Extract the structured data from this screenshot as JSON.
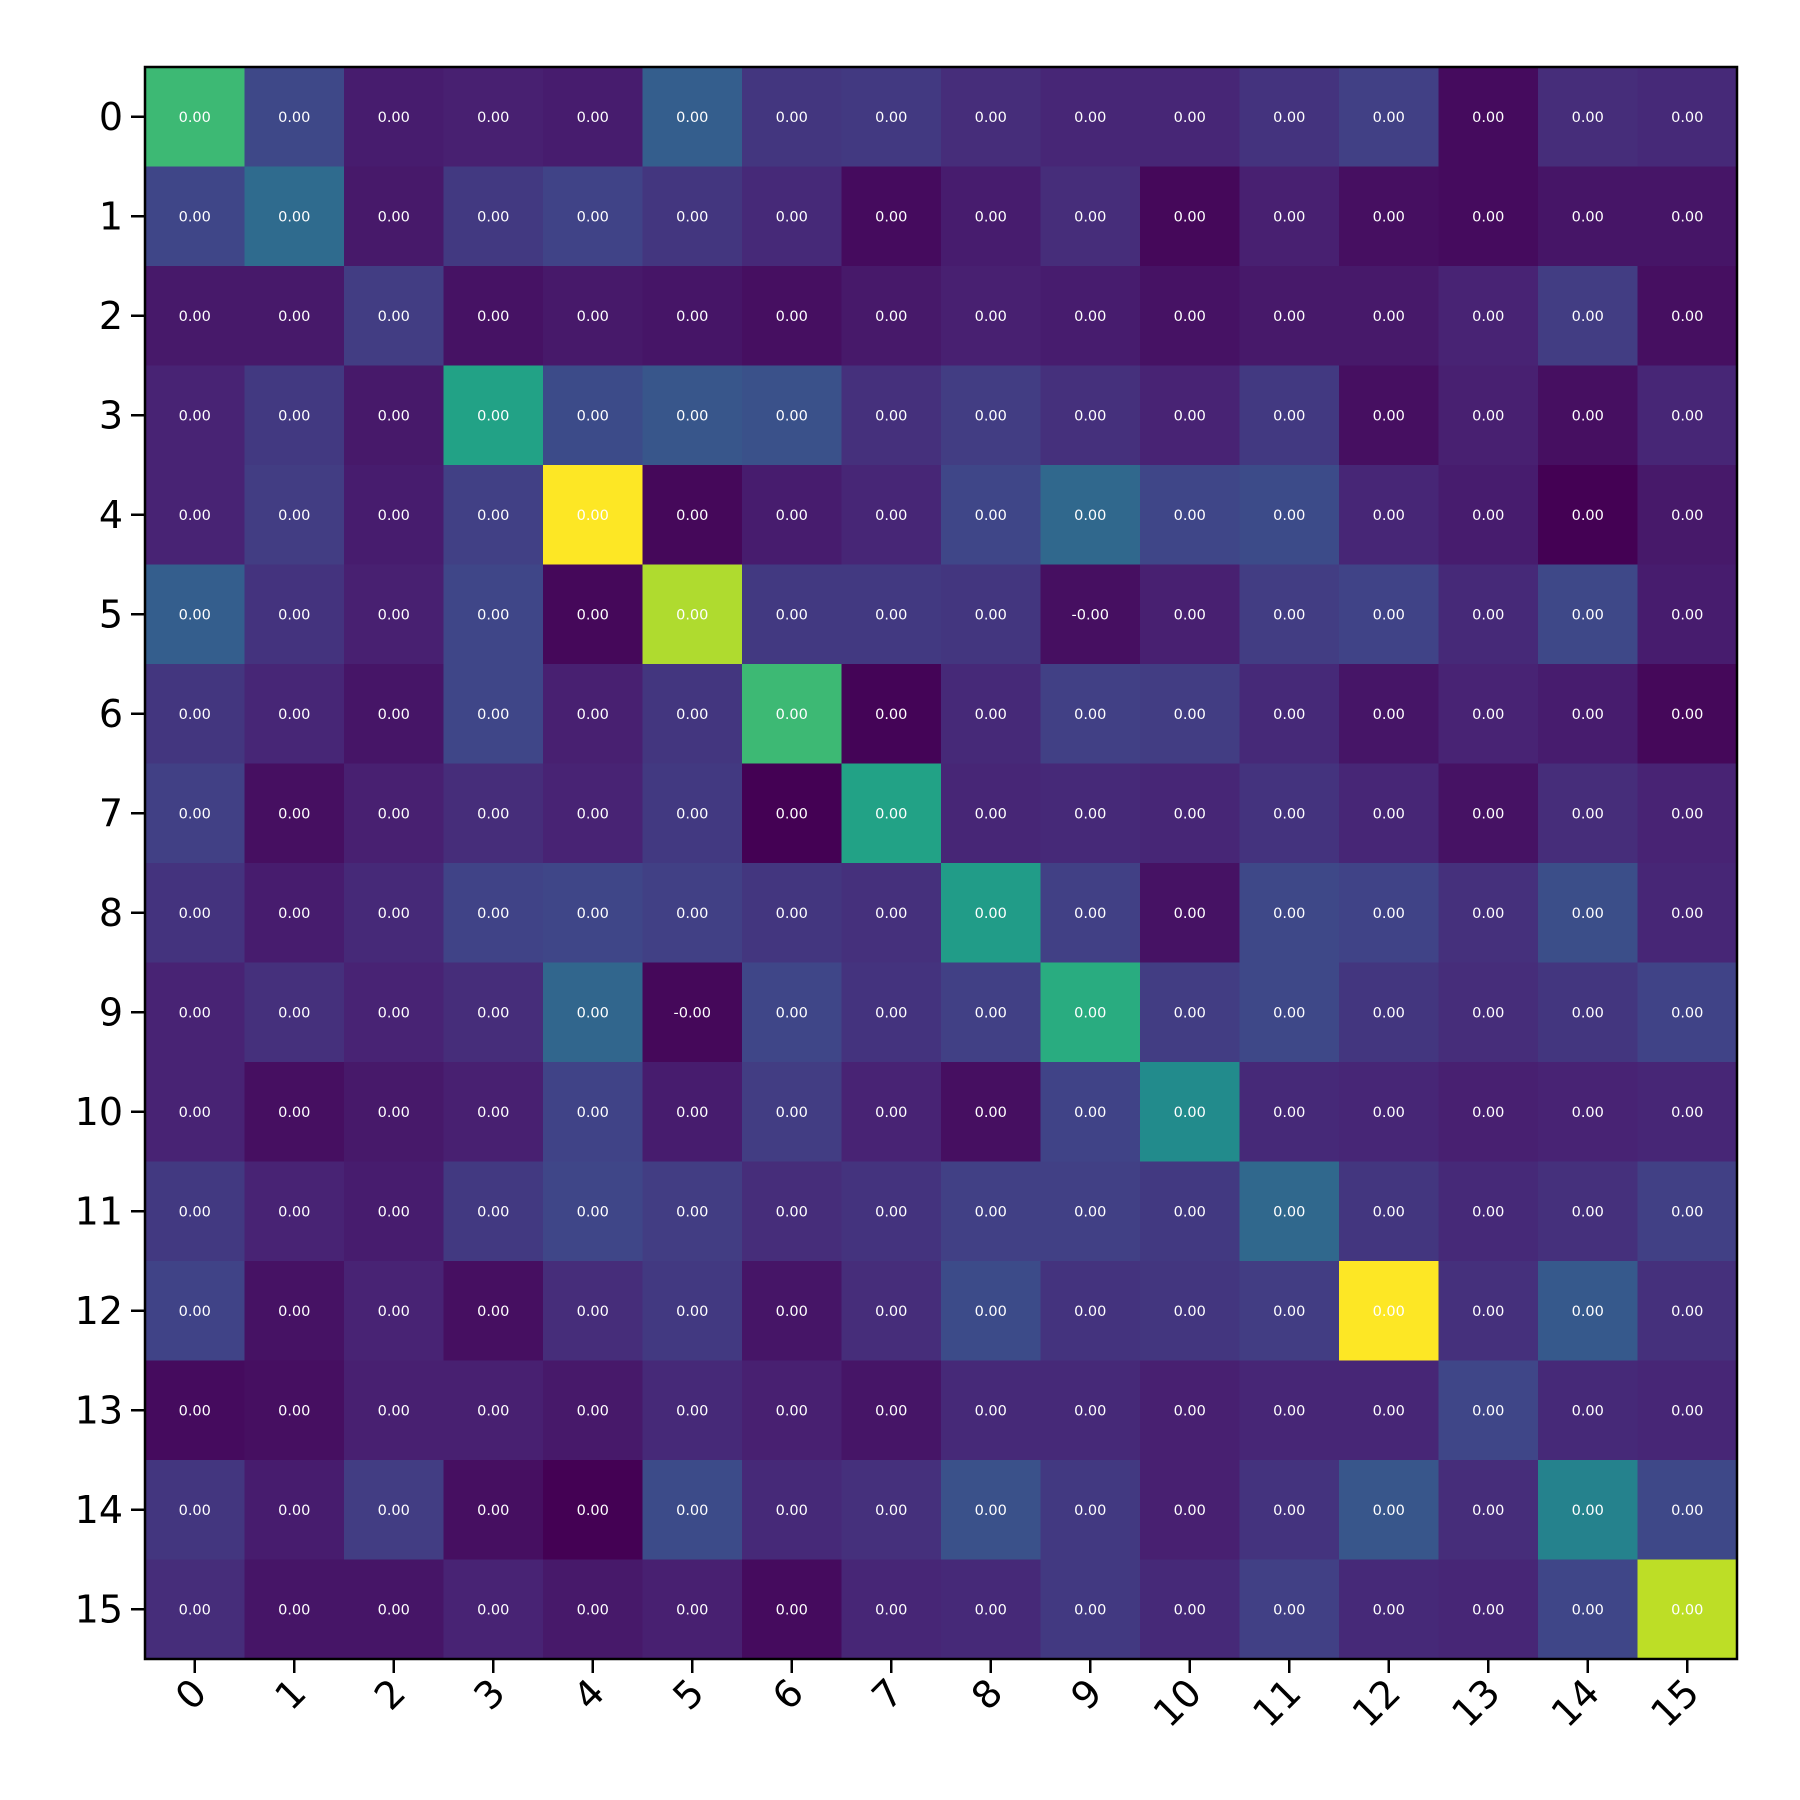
{
  "chart_data": {
    "type": "heatmap",
    "title": "",
    "xlabel": "",
    "ylabel": "",
    "colormap": "viridis",
    "x_categories": [
      "0",
      "1",
      "2",
      "3",
      "4",
      "5",
      "6",
      "7",
      "8",
      "9",
      "10",
      "11",
      "12",
      "13",
      "14",
      "15"
    ],
    "y_categories": [
      "0",
      "1",
      "2",
      "3",
      "4",
      "5",
      "6",
      "7",
      "8",
      "9",
      "10",
      "11",
      "12",
      "13",
      "14",
      "15"
    ],
    "x_tick_rotation_deg": 45,
    "grid": false,
    "legend": "none",
    "color_range": [
      0,
      1
    ],
    "intensity": [
      [
        0.68,
        0.22,
        0.08,
        0.09,
        0.08,
        0.3,
        0.16,
        0.17,
        0.13,
        0.11,
        0.11,
        0.15,
        0.19,
        0.03,
        0.13,
        0.12
      ],
      [
        0.21,
        0.35,
        0.07,
        0.17,
        0.2,
        0.16,
        0.12,
        0.03,
        0.08,
        0.13,
        0.02,
        0.09,
        0.04,
        0.03,
        0.06,
        0.06
      ],
      [
        0.07,
        0.07,
        0.18,
        0.05,
        0.07,
        0.06,
        0.04,
        0.07,
        0.09,
        0.08,
        0.05,
        0.07,
        0.07,
        0.1,
        0.18,
        0.04
      ],
      [
        0.1,
        0.17,
        0.07,
        0.58,
        0.23,
        0.27,
        0.25,
        0.14,
        0.18,
        0.14,
        0.1,
        0.17,
        0.04,
        0.09,
        0.04,
        0.11
      ],
      [
        0.1,
        0.18,
        0.08,
        0.19,
        1.0,
        0.02,
        0.08,
        0.11,
        0.21,
        0.34,
        0.21,
        0.23,
        0.11,
        0.08,
        0.0,
        0.07
      ],
      [
        0.3,
        0.15,
        0.09,
        0.21,
        0.02,
        0.88,
        0.17,
        0.17,
        0.16,
        0.04,
        0.09,
        0.18,
        0.2,
        0.12,
        0.22,
        0.08
      ],
      [
        0.16,
        0.11,
        0.06,
        0.21,
        0.09,
        0.16,
        0.68,
        0.01,
        0.12,
        0.19,
        0.18,
        0.12,
        0.06,
        0.1,
        0.08,
        0.02
      ],
      [
        0.19,
        0.04,
        0.09,
        0.13,
        0.1,
        0.17,
        0.0,
        0.58,
        0.11,
        0.12,
        0.11,
        0.15,
        0.11,
        0.05,
        0.13,
        0.1
      ],
      [
        0.15,
        0.08,
        0.12,
        0.2,
        0.21,
        0.19,
        0.16,
        0.14,
        0.55,
        0.19,
        0.05,
        0.22,
        0.2,
        0.14,
        0.24,
        0.11
      ],
      [
        0.1,
        0.14,
        0.1,
        0.13,
        0.33,
        0.02,
        0.21,
        0.15,
        0.19,
        0.62,
        0.18,
        0.22,
        0.16,
        0.13,
        0.16,
        0.2
      ],
      [
        0.1,
        0.04,
        0.07,
        0.09,
        0.2,
        0.08,
        0.18,
        0.1,
        0.04,
        0.2,
        0.48,
        0.12,
        0.11,
        0.09,
        0.1,
        0.11
      ],
      [
        0.17,
        0.1,
        0.08,
        0.17,
        0.21,
        0.18,
        0.13,
        0.15,
        0.19,
        0.19,
        0.17,
        0.34,
        0.16,
        0.12,
        0.14,
        0.19
      ],
      [
        0.2,
        0.05,
        0.1,
        0.04,
        0.13,
        0.17,
        0.06,
        0.13,
        0.23,
        0.15,
        0.16,
        0.18,
        1.0,
        0.14,
        0.28,
        0.14
      ],
      [
        0.03,
        0.04,
        0.09,
        0.09,
        0.07,
        0.12,
        0.09,
        0.06,
        0.12,
        0.12,
        0.09,
        0.11,
        0.11,
        0.21,
        0.12,
        0.11
      ],
      [
        0.16,
        0.08,
        0.18,
        0.04,
        0.0,
        0.23,
        0.12,
        0.14,
        0.25,
        0.17,
        0.09,
        0.15,
        0.27,
        0.13,
        0.44,
        0.22
      ],
      [
        0.13,
        0.06,
        0.06,
        0.1,
        0.07,
        0.09,
        0.03,
        0.11,
        0.12,
        0.17,
        0.12,
        0.19,
        0.12,
        0.11,
        0.21,
        0.9
      ]
    ],
    "cell_labels": [
      [
        "0.00",
        "0.00",
        "0.00",
        "0.00",
        "0.00",
        "0.00",
        "0.00",
        "0.00",
        "0.00",
        "0.00",
        "0.00",
        "0.00",
        "0.00",
        "0.00",
        "0.00",
        "0.00"
      ],
      [
        "0.00",
        "0.00",
        "0.00",
        "0.00",
        "0.00",
        "0.00",
        "0.00",
        "0.00",
        "0.00",
        "0.00",
        "0.00",
        "0.00",
        "0.00",
        "0.00",
        "0.00",
        "0.00"
      ],
      [
        "0.00",
        "0.00",
        "0.00",
        "0.00",
        "0.00",
        "0.00",
        "0.00",
        "0.00",
        "0.00",
        "0.00",
        "0.00",
        "0.00",
        "0.00",
        "0.00",
        "0.00",
        "0.00"
      ],
      [
        "0.00",
        "0.00",
        "0.00",
        "0.00",
        "0.00",
        "0.00",
        "0.00",
        "0.00",
        "0.00",
        "0.00",
        "0.00",
        "0.00",
        "0.00",
        "0.00",
        "0.00",
        "0.00"
      ],
      [
        "0.00",
        "0.00",
        "0.00",
        "0.00",
        "0.00",
        "0.00",
        "0.00",
        "0.00",
        "0.00",
        "0.00",
        "0.00",
        "0.00",
        "0.00",
        "0.00",
        "0.00",
        "0.00"
      ],
      [
        "0.00",
        "0.00",
        "0.00",
        "0.00",
        "0.00",
        "0.00",
        "0.00",
        "0.00",
        "0.00",
        "-0.00",
        "0.00",
        "0.00",
        "0.00",
        "0.00",
        "0.00",
        "0.00"
      ],
      [
        "0.00",
        "0.00",
        "0.00",
        "0.00",
        "0.00",
        "0.00",
        "0.00",
        "0.00",
        "0.00",
        "0.00",
        "0.00",
        "0.00",
        "0.00",
        "0.00",
        "0.00",
        "0.00"
      ],
      [
        "0.00",
        "0.00",
        "0.00",
        "0.00",
        "0.00",
        "0.00",
        "0.00",
        "0.00",
        "0.00",
        "0.00",
        "0.00",
        "0.00",
        "0.00",
        "0.00",
        "0.00",
        "0.00"
      ],
      [
        "0.00",
        "0.00",
        "0.00",
        "0.00",
        "0.00",
        "0.00",
        "0.00",
        "0.00",
        "0.00",
        "0.00",
        "0.00",
        "0.00",
        "0.00",
        "0.00",
        "0.00",
        "0.00"
      ],
      [
        "0.00",
        "0.00",
        "0.00",
        "0.00",
        "0.00",
        "-0.00",
        "0.00",
        "0.00",
        "0.00",
        "0.00",
        "0.00",
        "0.00",
        "0.00",
        "0.00",
        "0.00",
        "0.00"
      ],
      [
        "0.00",
        "0.00",
        "0.00",
        "0.00",
        "0.00",
        "0.00",
        "0.00",
        "0.00",
        "0.00",
        "0.00",
        "0.00",
        "0.00",
        "0.00",
        "0.00",
        "0.00",
        "0.00"
      ],
      [
        "0.00",
        "0.00",
        "0.00",
        "0.00",
        "0.00",
        "0.00",
        "0.00",
        "0.00",
        "0.00",
        "0.00",
        "0.00",
        "0.00",
        "0.00",
        "0.00",
        "0.00",
        "0.00"
      ],
      [
        "0.00",
        "0.00",
        "0.00",
        "0.00",
        "0.00",
        "0.00",
        "0.00",
        "0.00",
        "0.00",
        "0.00",
        "0.00",
        "0.00",
        "0.00",
        "0.00",
        "0.00",
        "0.00"
      ],
      [
        "0.00",
        "0.00",
        "0.00",
        "0.00",
        "0.00",
        "0.00",
        "0.00",
        "0.00",
        "0.00",
        "0.00",
        "0.00",
        "0.00",
        "0.00",
        "0.00",
        "0.00",
        "0.00"
      ],
      [
        "0.00",
        "0.00",
        "0.00",
        "0.00",
        "0.00",
        "0.00",
        "0.00",
        "0.00",
        "0.00",
        "0.00",
        "0.00",
        "0.00",
        "0.00",
        "0.00",
        "0.00",
        "0.00"
      ],
      [
        "0.00",
        "0.00",
        "0.00",
        "0.00",
        "0.00",
        "0.00",
        "0.00",
        "0.00",
        "0.00",
        "0.00",
        "0.00",
        "0.00",
        "0.00",
        "0.00",
        "0.00",
        "0.00"
      ]
    ]
  }
}
